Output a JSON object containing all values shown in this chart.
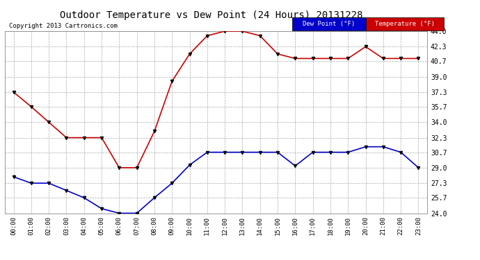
{
  "title": "Outdoor Temperature vs Dew Point (24 Hours) 20131228",
  "copyright": "Copyright 2013 Cartronics.com",
  "background_color": "#ffffff",
  "plot_bg_color": "#ffffff",
  "grid_color": "#aaaaaa",
  "x_labels": [
    "00:00",
    "01:00",
    "02:00",
    "03:00",
    "04:00",
    "05:00",
    "06:00",
    "07:00",
    "08:00",
    "09:00",
    "10:00",
    "11:00",
    "12:00",
    "13:00",
    "14:00",
    "15:00",
    "16:00",
    "17:00",
    "18:00",
    "19:00",
    "20:00",
    "21:00",
    "22:00",
    "23:00"
  ],
  "temperature": [
    37.3,
    35.7,
    34.0,
    32.3,
    32.3,
    32.3,
    29.0,
    29.0,
    33.0,
    38.5,
    41.5,
    43.5,
    44.0,
    44.0,
    43.5,
    41.5,
    41.0,
    41.0,
    41.0,
    41.0,
    42.3,
    41.0,
    41.0,
    41.0
  ],
  "dew_point": [
    28.0,
    27.3,
    27.3,
    26.5,
    25.7,
    24.5,
    24.0,
    24.0,
    25.7,
    27.3,
    29.3,
    30.7,
    30.7,
    30.7,
    30.7,
    30.7,
    29.2,
    30.7,
    30.7,
    30.7,
    31.3,
    31.3,
    30.7,
    29.0
  ],
  "temp_color": "#cc0000",
  "dew_color": "#0000cc",
  "ylim_min": 24.0,
  "ylim_max": 44.0,
  "yticks": [
    24.0,
    25.7,
    27.3,
    29.0,
    30.7,
    32.3,
    34.0,
    35.7,
    37.3,
    39.0,
    40.7,
    42.3,
    44.0
  ],
  "legend_dew_bg": "#0000cc",
  "legend_temp_bg": "#cc0000",
  "legend_dew_label": "Dew Point (°F)",
  "legend_temp_label": "Temperature (°F)",
  "marker_size": 3,
  "linewidth": 1.2
}
